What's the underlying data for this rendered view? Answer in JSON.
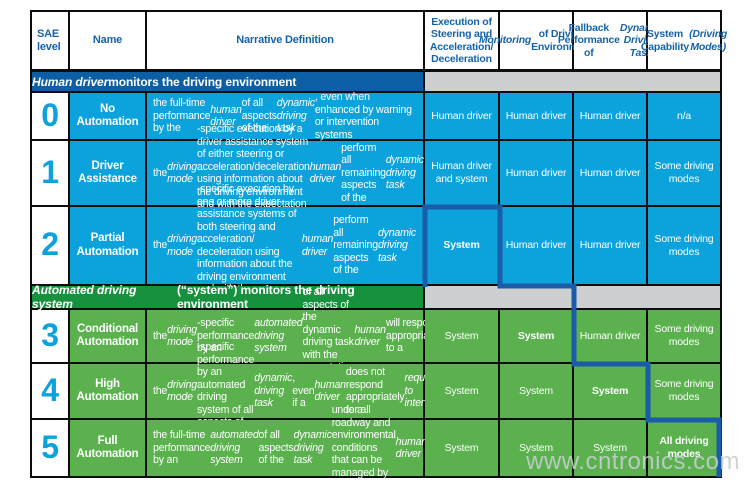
{
  "header": {
    "columns": [
      "SAE level",
      "Name",
      "Narrative Definition",
      "Execution of Steering and Acceleration/ Deceleration",
      "*Monitoring* of Driving Environment",
      "Fallback Performance of *Dynamic Driving Task*",
      "System Capability *(Driving Modes)*"
    ]
  },
  "bands": [
    {
      "label": "*Human driver* monitors the driving environment"
    },
    {
      "label": "*Automated driving system* (“system”) monitors the driving environment"
    }
  ],
  "rows": [
    {
      "level": "0",
      "name": "No Automation",
      "group": "blue",
      "narrative": "the full-time performance by the *human driver* of all aspects of the *dynamic driving task*, even when enhanced by warning or intervention systems",
      "cells": [
        "Human driver",
        "Human driver",
        "Human driver",
        "n/a"
      ]
    },
    {
      "level": "1",
      "name": "Driver Assistance",
      "group": "blue",
      "narrative": "the *driving mode*-specific execution by a driver assistance system of either steering or acceleration/deceleration using information about the driving environment and with the expectation that the *human driver* perform all remaining aspects of the *dynamic driving task*",
      "cells": [
        "Human driver and system",
        "Human driver",
        "Human driver",
        "Some driving modes"
      ]
    },
    {
      "level": "2",
      "name": "Partial Automation",
      "group": "blue",
      "narrative": "the *driving mode*-specific execution by one or more driver assistance systems of both steering and acceleration/ deceleration using information about the driving environment and with the expectation that the *human driver* perform all remaining aspects of the *dynamic driving task*",
      "cells": [
        "**System**",
        "Human driver",
        "Human driver",
        "Some driving modes"
      ]
    },
    {
      "level": "3",
      "name": "Conditional Automation",
      "group": "green",
      "narrative": "the *driving mode*-specific performance by an *automated driving system* of all aspects of the dynamic driving task with the expectation that the *human driver* will respond appropriately to a *request to intervene*",
      "cells": [
        "System",
        "**System**",
        "Human driver",
        "Some driving modes"
      ]
    },
    {
      "level": "4",
      "name": "High Automation",
      "group": "green",
      "narrative": "the *driving mode*-specific performance by an automated driving system of all aspects of the *dynamic driving task*, even if a *human driver* does not respond appropriately to a *request to intervene*",
      "cells": [
        "System",
        "System",
        "**System**",
        "Some driving modes"
      ]
    },
    {
      "level": "5",
      "name": "Full Automation",
      "group": "green",
      "narrative": "the full-time performance by an *automated driving system* of all aspects of the *dynamic driving task* under all roadway and environmental conditions that can be managed by a *human driver*",
      "cells": [
        "System",
        "System",
        "System",
        "**All driving modes**"
      ]
    }
  ],
  "watermark": "www.cntronics.com",
  "colors": {
    "cell_blue": "#0ca3dd",
    "cell_green": "#5ab14e",
    "band_blue": "#0d5fa5",
    "band_green": "#18913f",
    "band_gray": "#cdcfd0",
    "header_text": "#1663ab",
    "level_number": "#0ca3dd",
    "boundary_line": "#1a5ca8",
    "grid_line": "#0d0d0d"
  }
}
